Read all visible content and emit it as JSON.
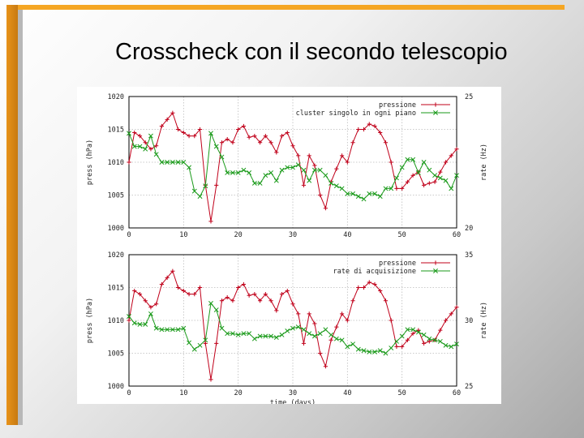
{
  "slide": {
    "title": "Crosscheck con il secondo telescopio"
  },
  "colors": {
    "pressure": "#c0001a",
    "secondary": "#1a9a1a",
    "accent_bar": "#f5a623"
  },
  "chart_data": [
    {
      "type": "line",
      "xlabel": "",
      "ylabel": "press (hPa)",
      "y2label": "rate (Hz)",
      "xlim": [
        0,
        60
      ],
      "ylim": [
        1000,
        1020
      ],
      "y2lim": [
        20,
        25
      ],
      "x_ticks": [
        "0",
        "10",
        "20",
        "30",
        "40",
        "50",
        "60"
      ],
      "y_ticks": [
        "1000",
        "1005",
        "1010",
        "1015",
        "1020"
      ],
      "y2_ticks": [
        "20",
        "25"
      ],
      "grid": true,
      "legend_position": "top-right",
      "series": [
        {
          "name": "pressione",
          "axis": "left",
          "marker": "+",
          "x": [
            0,
            1,
            2,
            3,
            4,
            5,
            6,
            7,
            8,
            9,
            10,
            11,
            12,
            13,
            14,
            15,
            16,
            17,
            18,
            19,
            20,
            21,
            22,
            23,
            24,
            25,
            26,
            27,
            28,
            29,
            30,
            31,
            32,
            33,
            34,
            35,
            36,
            37,
            38,
            39,
            40,
            41,
            42,
            43,
            44,
            45,
            46,
            47,
            48,
            49,
            50,
            51,
            52,
            53,
            54,
            55,
            56,
            57,
            58,
            59,
            60
          ],
          "y": [
            1010,
            1014.5,
            1014,
            1013,
            1012,
            1012.5,
            1015.5,
            1016.5,
            1017.5,
            1015,
            1014.5,
            1014,
            1014,
            1015,
            1006.5,
            1001,
            1006.5,
            1013,
            1013.5,
            1013,
            1015,
            1015.5,
            1013.8,
            1014,
            1013,
            1014,
            1013,
            1011.5,
            1014,
            1014.5,
            1012.5,
            1011,
            1006.5,
            1011,
            1009.5,
            1005,
            1003,
            1007,
            1009,
            1011,
            1010,
            1013,
            1015,
            1015,
            1015.8,
            1015.5,
            1014.5,
            1013,
            1010,
            1006,
            1006,
            1007,
            1008,
            1008.5,
            1006.5,
            1006.8,
            1007,
            1008.5,
            1010,
            1011,
            1012
          ]
        },
        {
          "name": "cluster singolo in ogni piano",
          "axis": "right",
          "marker": "x",
          "x": [
            0,
            1,
            2,
            3,
            4,
            5,
            6,
            7,
            8,
            9,
            10,
            11,
            12,
            13,
            14,
            15,
            16,
            17,
            18,
            19,
            20,
            21,
            22,
            23,
            24,
            25,
            26,
            27,
            28,
            29,
            30,
            31,
            32,
            33,
            34,
            35,
            36,
            37,
            38,
            39,
            40,
            41,
            42,
            43,
            44,
            45,
            46,
            47,
            48,
            49,
            50,
            51,
            52,
            53,
            54,
            55,
            56,
            57,
            58,
            59,
            60
          ],
          "y": [
            23.6,
            23.1,
            23.1,
            23,
            23.5,
            22.8,
            22.5,
            22.5,
            22.5,
            22.5,
            22.5,
            22.3,
            21.4,
            21.2,
            21.6,
            23.6,
            23.1,
            22.7,
            22.1,
            22.1,
            22.1,
            22.2,
            22.1,
            21.7,
            21.7,
            22,
            22.1,
            21.8,
            22.2,
            22.3,
            22.3,
            22.4,
            22.2,
            21.8,
            22.2,
            22.2,
            22,
            21.7,
            21.6,
            21.5,
            21.3,
            21.3,
            21.2,
            21.1,
            21.3,
            21.3,
            21.2,
            21.5,
            21.5,
            21.9,
            22.3,
            22.6,
            22.6,
            22.1,
            22.5,
            22.2,
            22,
            21.9,
            21.8,
            21.5,
            22
          ]
        }
      ]
    },
    {
      "type": "line",
      "xlabel": "time (days)",
      "ylabel": "press (hPa)",
      "y2label": "rate (Hz)",
      "xlim": [
        0,
        60
      ],
      "ylim": [
        1000,
        1020
      ],
      "y2lim": [
        25,
        35
      ],
      "x_ticks": [
        "0",
        "10",
        "20",
        "30",
        "40",
        "50",
        "60"
      ],
      "y_ticks": [
        "1000",
        "1005",
        "1010",
        "1015",
        "1020"
      ],
      "y2_ticks": [
        "25",
        "30",
        "35"
      ],
      "grid": true,
      "legend_position": "top-right",
      "series": [
        {
          "name": "pressione",
          "axis": "left",
          "marker": "+",
          "x": [
            0,
            1,
            2,
            3,
            4,
            5,
            6,
            7,
            8,
            9,
            10,
            11,
            12,
            13,
            14,
            15,
            16,
            17,
            18,
            19,
            20,
            21,
            22,
            23,
            24,
            25,
            26,
            27,
            28,
            29,
            30,
            31,
            32,
            33,
            34,
            35,
            36,
            37,
            38,
            39,
            40,
            41,
            42,
            43,
            44,
            45,
            46,
            47,
            48,
            49,
            50,
            51,
            52,
            53,
            54,
            55,
            56,
            57,
            58,
            59,
            60
          ],
          "y": [
            1010,
            1014.5,
            1014,
            1013,
            1012,
            1012.5,
            1015.5,
            1016.5,
            1017.5,
            1015,
            1014.5,
            1014,
            1014,
            1015,
            1006.5,
            1001,
            1006.5,
            1013,
            1013.5,
            1013,
            1015,
            1015.5,
            1013.8,
            1014,
            1013,
            1014,
            1013,
            1011.5,
            1014,
            1014.5,
            1012.5,
            1011,
            1006.5,
            1011,
            1009.5,
            1005,
            1003,
            1007,
            1009,
            1011,
            1010,
            1013,
            1015,
            1015,
            1015.8,
            1015.5,
            1014.5,
            1013,
            1010,
            1006,
            1006,
            1007,
            1008,
            1008.5,
            1006.5,
            1006.8,
            1007,
            1008.5,
            1010,
            1011,
            1012
          ]
        },
        {
          "name": "rate di acquisizione",
          "axis": "right",
          "marker": "x",
          "x": [
            0,
            1,
            2,
            3,
            4,
            5,
            6,
            7,
            8,
            9,
            10,
            11,
            12,
            13,
            14,
            15,
            16,
            17,
            18,
            19,
            20,
            21,
            22,
            23,
            24,
            25,
            26,
            27,
            28,
            29,
            30,
            31,
            32,
            33,
            34,
            35,
            36,
            37,
            38,
            39,
            40,
            41,
            42,
            43,
            44,
            45,
            46,
            47,
            48,
            49,
            50,
            51,
            52,
            53,
            54,
            55,
            56,
            57,
            58,
            59,
            60
          ],
          "y": [
            30.3,
            29.8,
            29.7,
            29.7,
            30.5,
            29.4,
            29.3,
            29.3,
            29.3,
            29.3,
            29.4,
            28.3,
            27.8,
            28.1,
            28.5,
            31.3,
            30.8,
            29.4,
            29,
            29,
            28.9,
            29,
            29,
            28.6,
            28.8,
            28.8,
            28.8,
            28.7,
            28.9,
            29.2,
            29.4,
            29.5,
            29.3,
            29,
            28.8,
            29,
            29.3,
            28.9,
            28.6,
            28.5,
            28,
            28.2,
            27.8,
            27.7,
            27.6,
            27.6,
            27.7,
            27.5,
            27.9,
            28.4,
            28.8,
            29.3,
            29.3,
            29.1,
            28.9,
            28.6,
            28.5,
            28.4,
            28.1,
            28,
            28.2
          ]
        }
      ]
    }
  ]
}
